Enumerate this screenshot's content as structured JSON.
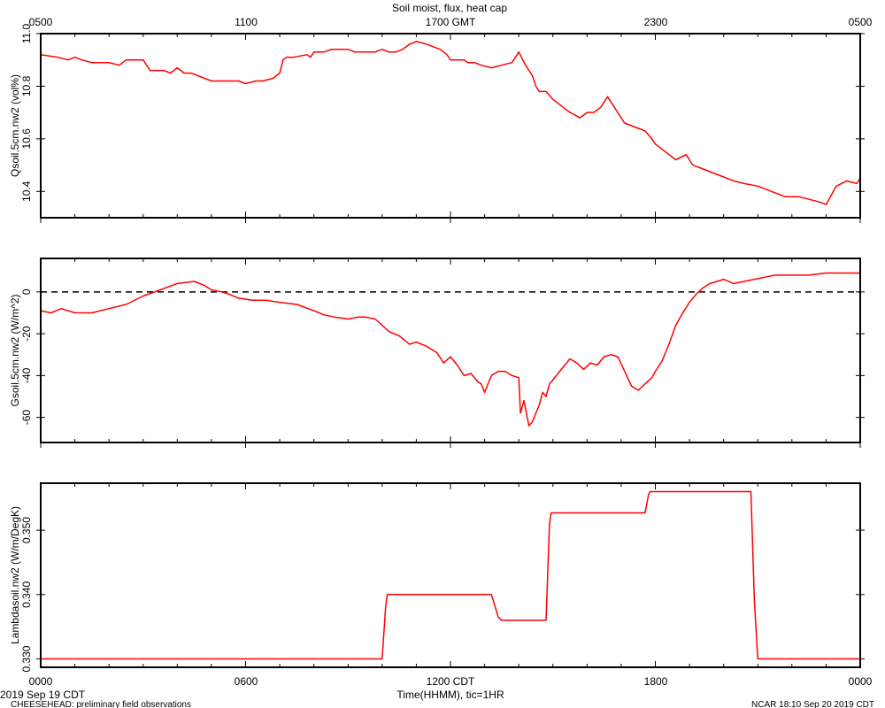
{
  "title": "Soil moist, flux, heat cap",
  "top_axis": {
    "ticks": [
      "0500",
      "1100",
      "1700 GMT",
      "2300",
      "0500"
    ]
  },
  "bottom_axis": {
    "ticks": [
      "0000",
      "0600",
      "1200 CDT",
      "1800",
      "0000"
    ],
    "label": "Time(HHMM), tic=1HR"
  },
  "footer": {
    "date_left": "2019 Sep 19 CDT",
    "project": "CHEESEHEAD: preliminary field observations",
    "stamp": "NCAR 18:10 Sep 20 2019 CDT"
  },
  "colors": {
    "series": "#ff0000",
    "zero_line": "#000000"
  },
  "chart_data": [
    {
      "type": "line",
      "ylabel": "Qsoil.5cm.nw2 (vol%)",
      "ylim": [
        10.3,
        11.0
      ],
      "yticks": [
        10.4,
        10.6,
        10.8,
        11.0
      ],
      "ytick_labels": [
        "10.4",
        "10.6",
        "10.8",
        "11.0"
      ],
      "xlim": [
        0,
        24
      ],
      "series": [
        {
          "x": [
            0,
            0.5,
            0.8,
            1.0,
            1.2,
            1.5,
            2.0,
            2.3,
            2.5,
            2.7,
            3.0,
            3.2,
            3.4,
            3.6,
            3.8,
            4.0,
            4.2,
            4.3,
            4.4,
            4.6,
            5.0,
            5.3,
            5.5,
            5.8,
            6.0,
            6.3,
            6.5,
            6.8,
            7.0,
            7.1,
            7.2,
            7.4,
            7.8,
            7.9,
            8.0,
            8.3,
            8.5,
            8.8,
            9.0,
            9.2,
            9.5,
            9.8,
            10.0,
            10.2,
            10.4,
            10.6,
            10.8,
            11.0,
            11.3,
            11.5,
            11.7,
            11.9,
            12.0,
            12.2,
            12.4,
            12.5,
            12.7,
            12.9,
            13.2,
            13.5,
            13.8,
            14.0,
            14.2,
            14.4,
            14.5,
            14.6,
            14.8,
            15.0,
            15.2,
            15.3,
            15.5,
            15.8,
            16.0,
            16.2,
            16.4,
            16.6,
            16.8,
            17.0,
            17.1,
            17.3,
            17.5,
            17.7,
            17.9,
            18.0,
            18.3,
            18.6,
            18.9,
            19.1,
            19.3,
            19.5,
            19.7,
            19.9,
            20.3,
            20.6,
            21.0,
            21.4,
            21.8,
            22.2,
            22.5,
            22.8,
            23.0,
            23.3,
            23.6,
            23.9,
            24.0
          ],
          "y": [
            10.92,
            10.91,
            10.9,
            10.91,
            10.9,
            10.89,
            10.89,
            10.88,
            10.9,
            10.9,
            10.9,
            10.86,
            10.86,
            10.86,
            10.85,
            10.87,
            10.85,
            10.85,
            10.85,
            10.84,
            10.82,
            10.82,
            10.82,
            10.82,
            10.81,
            10.82,
            10.82,
            10.83,
            10.85,
            10.9,
            10.91,
            10.91,
            10.92,
            10.91,
            10.93,
            10.93,
            10.94,
            10.94,
            10.94,
            10.93,
            10.93,
            10.93,
            10.94,
            10.93,
            10.93,
            10.94,
            10.96,
            10.97,
            10.96,
            10.95,
            10.94,
            10.92,
            10.9,
            10.9,
            10.9,
            10.89,
            10.89,
            10.88,
            10.87,
            10.88,
            10.89,
            10.93,
            10.88,
            10.84,
            10.8,
            10.78,
            10.78,
            10.75,
            10.73,
            10.72,
            10.7,
            10.68,
            10.7,
            10.7,
            10.72,
            10.76,
            10.72,
            10.68,
            10.66,
            10.65,
            10.64,
            10.63,
            10.6,
            10.58,
            10.55,
            10.52,
            10.54,
            10.5,
            10.49,
            10.48,
            10.47,
            10.46,
            10.44,
            10.43,
            10.42,
            10.4,
            10.38,
            10.38,
            10.37,
            10.36,
            10.35,
            10.42,
            10.44,
            10.43,
            10.45
          ]
        }
      ]
    },
    {
      "type": "line",
      "ylabel": "Gsoil.5cm.nw2 (W/m^2)",
      "ylim": [
        -72,
        16
      ],
      "yticks": [
        -60,
        -40,
        -20,
        0
      ],
      "ytick_labels": [
        "-60",
        "-40",
        "-20",
        "0"
      ],
      "xlim": [
        0,
        24
      ],
      "reference_line": 0,
      "series": [
        {
          "x": [
            0,
            0.3,
            0.6,
            1.0,
            1.5,
            2.0,
            2.5,
            3.0,
            3.5,
            4.0,
            4.5,
            4.8,
            5.0,
            5.3,
            5.5,
            5.8,
            6.2,
            6.6,
            7.0,
            7.5,
            8.0,
            8.3,
            8.6,
            9.0,
            9.3,
            9.5,
            9.8,
            10.0,
            10.2,
            10.5,
            10.8,
            11.0,
            11.3,
            11.6,
            11.8,
            12.0,
            12.2,
            12.4,
            12.6,
            12.8,
            12.9,
            13.0,
            13.2,
            13.4,
            13.6,
            13.8,
            14.0,
            14.05,
            14.15,
            14.3,
            14.4,
            14.5,
            14.6,
            14.7,
            14.8,
            14.9,
            15.0,
            15.1,
            15.3,
            15.5,
            15.7,
            15.9,
            16.1,
            16.3,
            16.5,
            16.7,
            16.9,
            17.1,
            17.3,
            17.5,
            17.7,
            17.9,
            18.0,
            18.2,
            18.4,
            18.6,
            18.8,
            19.0,
            19.2,
            19.4,
            19.6,
            19.8,
            20.0,
            20.3,
            20.6,
            20.9,
            21.2,
            21.5,
            22.0,
            22.5,
            23.0,
            23.5,
            24.0
          ],
          "y": [
            -9,
            -10,
            -8,
            -10,
            -10,
            -8,
            -6,
            -2,
            1,
            4,
            5,
            3,
            1,
            0,
            -1,
            -3,
            -4,
            -4,
            -5,
            -6,
            -9,
            -11,
            -12,
            -13,
            -12,
            -12,
            -13,
            -16,
            -19,
            -21,
            -25,
            -24,
            -26,
            -29,
            -34,
            -31,
            -35,
            -40,
            -39,
            -43,
            -44,
            -48,
            -40,
            -38,
            -38,
            -40,
            -41,
            -58,
            -52,
            -64,
            -62,
            -58,
            -54,
            -48,
            -50,
            -44,
            -42,
            -40,
            -36,
            -32,
            -34,
            -37,
            -34,
            -35,
            -31,
            -30,
            -31,
            -38,
            -45,
            -47,
            -44,
            -41,
            -38,
            -33,
            -25,
            -16,
            -10,
            -5,
            -1,
            2,
            4,
            5,
            6,
            4,
            5,
            6,
            7,
            8,
            8,
            8,
            9,
            9,
            9
          ]
        }
      ]
    },
    {
      "type": "line",
      "ylabel": "Lambdasoil.nw2 (W/m/DegK)",
      "ylim": [
        0.3287,
        0.3573
      ],
      "yticks": [
        0.33,
        0.34,
        0.35
      ],
      "ytick_labels": [
        "0.330",
        "0.340",
        "0.350"
      ],
      "xlim": [
        0,
        24
      ],
      "series": [
        {
          "x": [
            0,
            10.0,
            10.1,
            10.15,
            13.2,
            13.4,
            13.5,
            14.8,
            14.9,
            14.95,
            17.7,
            17.8,
            17.85,
            20.8,
            20.9,
            21.0,
            24.0
          ],
          "y": [
            0.33,
            0.33,
            0.338,
            0.34,
            0.34,
            0.3365,
            0.336,
            0.336,
            0.351,
            0.3527,
            0.3527,
            0.3555,
            0.356,
            0.356,
            0.339,
            0.33,
            0.33
          ]
        }
      ]
    }
  ]
}
